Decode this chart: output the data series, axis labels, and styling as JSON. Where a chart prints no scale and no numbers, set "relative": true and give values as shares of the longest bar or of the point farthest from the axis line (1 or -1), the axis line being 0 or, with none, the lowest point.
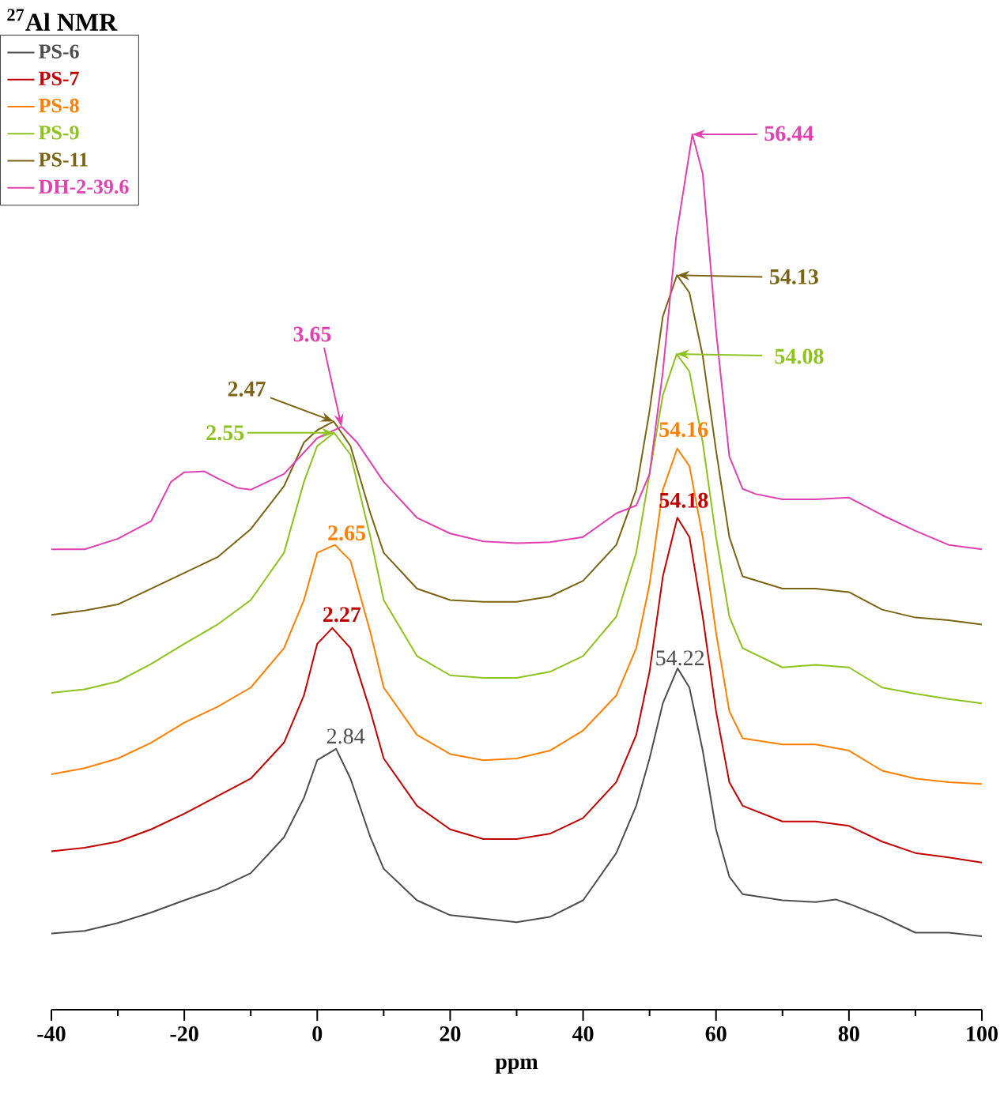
{
  "chart_data": {
    "type": "line",
    "title": "$^{27}$Al NMR",
    "xlabel": "ppm",
    "relative": true,
    "xlim": [
      -40,
      100
    ],
    "xticks": [
      -40,
      -20,
      0,
      20,
      40,
      60,
      80,
      100
    ],
    "tick_labels": "x",
    "grid": false,
    "legend": "top left",
    "line_style": "solid",
    "series": [
      {
        "name": "PS-6",
        "color": "#4d4d4d",
        "x": [
          -40,
          -35,
          -30,
          -25,
          -20,
          -15,
          -10,
          -5,
          -2,
          0,
          2.84,
          5,
          8,
          10,
          15,
          20,
          25,
          30,
          35,
          40,
          45,
          48,
          50,
          52,
          54.22,
          56,
          58,
          60,
          62,
          64,
          70,
          75,
          78,
          80,
          85,
          90,
          95,
          100
        ],
        "values": [
          0.087,
          0.09,
          0.099,
          0.111,
          0.125,
          0.138,
          0.156,
          0.197,
          0.242,
          0.285,
          0.298,
          0.264,
          0.197,
          0.161,
          0.125,
          0.108,
          0.104,
          0.1,
          0.106,
          0.125,
          0.179,
          0.233,
          0.287,
          0.35,
          0.39,
          0.368,
          0.296,
          0.206,
          0.152,
          0.132,
          0.125,
          0.123,
          0.126,
          0.121,
          0.106,
          0.088,
          0.088,
          0.084
        ]
      },
      {
        "name": "PS-7",
        "color": "#c00000",
        "x": [
          -40,
          -35,
          -30,
          -25,
          -20,
          -15,
          -10,
          -5,
          -2,
          0,
          2.27,
          5,
          8,
          10,
          15,
          20,
          25,
          30,
          35,
          40,
          45,
          48,
          50,
          52,
          54.18,
          56,
          58,
          60,
          62,
          64,
          70,
          75,
          80,
          85,
          90,
          95,
          100
        ],
        "values": [
          0.181,
          0.185,
          0.192,
          0.206,
          0.224,
          0.244,
          0.264,
          0.305,
          0.359,
          0.418,
          0.436,
          0.413,
          0.341,
          0.287,
          0.233,
          0.206,
          0.195,
          0.195,
          0.201,
          0.219,
          0.26,
          0.314,
          0.386,
          0.495,
          0.562,
          0.54,
          0.449,
          0.341,
          0.26,
          0.233,
          0.215,
          0.215,
          0.21,
          0.192,
          0.179,
          0.174,
          0.168
        ]
      },
      {
        "name": "PS-8",
        "color": "#ff8000",
        "x": [
          -40,
          -35,
          -30,
          -25,
          -20,
          -15,
          -10,
          -5,
          -2,
          0,
          2.65,
          5,
          8,
          10,
          15,
          20,
          25,
          30,
          35,
          40,
          45,
          48,
          50,
          52,
          54.16,
          56,
          58,
          60,
          62,
          64,
          70,
          75,
          80,
          85,
          90,
          95,
          100
        ],
        "values": [
          0.269,
          0.276,
          0.287,
          0.305,
          0.328,
          0.346,
          0.368,
          0.413,
          0.468,
          0.522,
          0.531,
          0.513,
          0.431,
          0.368,
          0.314,
          0.292,
          0.285,
          0.287,
          0.296,
          0.319,
          0.359,
          0.413,
          0.486,
          0.594,
          0.641,
          0.621,
          0.54,
          0.431,
          0.341,
          0.31,
          0.303,
          0.303,
          0.296,
          0.273,
          0.264,
          0.26,
          0.258
        ]
      },
      {
        "name": "PS-9",
        "color": "#8dc21f",
        "x": [
          -40,
          -35,
          -30,
          -25,
          -20,
          -15,
          -10,
          -5,
          -2,
          0,
          2.55,
          5,
          8,
          10,
          15,
          20,
          25,
          30,
          35,
          40,
          45,
          48,
          50,
          52,
          54.08,
          56,
          58,
          60,
          62,
          64,
          70,
          75,
          80,
          85,
          90,
          95,
          100
        ],
        "values": [
          0.362,
          0.366,
          0.375,
          0.395,
          0.418,
          0.44,
          0.468,
          0.522,
          0.603,
          0.644,
          0.659,
          0.634,
          0.54,
          0.468,
          0.404,
          0.382,
          0.379,
          0.379,
          0.386,
          0.404,
          0.449,
          0.522,
          0.612,
          0.702,
          0.749,
          0.729,
          0.648,
          0.54,
          0.449,
          0.413,
          0.391,
          0.394,
          0.391,
          0.368,
          0.361,
          0.355,
          0.35
        ]
      },
      {
        "name": "PS-11",
        "color": "#7a6414",
        "x": [
          -40,
          -35,
          -30,
          -25,
          -20,
          -15,
          -10,
          -5,
          -2,
          0,
          2.47,
          5,
          8,
          10,
          15,
          20,
          25,
          30,
          35,
          40,
          45,
          48,
          50,
          52,
          54.13,
          56,
          58,
          60,
          62,
          64,
          70,
          75,
          80,
          85,
          90,
          95,
          100
        ],
        "values": [
          0.451,
          0.456,
          0.463,
          0.481,
          0.499,
          0.517,
          0.549,
          0.598,
          0.648,
          0.662,
          0.672,
          0.644,
          0.567,
          0.522,
          0.481,
          0.468,
          0.466,
          0.466,
          0.472,
          0.49,
          0.531,
          0.594,
          0.684,
          0.792,
          0.839,
          0.819,
          0.747,
          0.639,
          0.54,
          0.495,
          0.481,
          0.481,
          0.477,
          0.457,
          0.448,
          0.445,
          0.44
        ]
      },
      {
        "name": "DH-2-39.6",
        "color": "#e040b0",
        "x": [
          -40,
          -35,
          -30,
          -25,
          -22,
          -20,
          -17,
          -15,
          -12,
          -10,
          -5,
          0,
          3.65,
          6,
          10,
          15,
          20,
          25,
          30,
          35,
          40,
          45,
          48,
          50,
          52,
          54,
          56.44,
          58,
          60,
          62,
          64,
          66,
          70,
          75,
          80,
          85,
          90,
          95,
          100
        ],
        "values": [
          0.526,
          0.526,
          0.538,
          0.558,
          0.603,
          0.614,
          0.615,
          0.607,
          0.596,
          0.594,
          0.612,
          0.653,
          0.666,
          0.648,
          0.603,
          0.562,
          0.544,
          0.535,
          0.533,
          0.534,
          0.54,
          0.567,
          0.576,
          0.612,
          0.729,
          0.883,
          1.0,
          0.955,
          0.776,
          0.632,
          0.595,
          0.589,
          0.583,
          0.583,
          0.585,
          0.565,
          0.547,
          0.531,
          0.526
        ]
      }
    ],
    "annotations": [
      {
        "text": "2.84",
        "x": 2.84,
        "y": 0.298
      },
      {
        "text": "54.22",
        "x": 54.22,
        "y": 0.39
      },
      {
        "text": "2.27",
        "x": 2.27,
        "y": 0.436
      },
      {
        "text": "54.18",
        "x": 54.18,
        "y": 0.562
      },
      {
        "text": "2.65",
        "x": 2.65,
        "y": 0.531
      },
      {
        "text": "54.16",
        "x": 54.16,
        "y": 0.641
      },
      "2.55",
      "54.08",
      "2.47",
      "54.13",
      "3.65",
      "56.44"
    ]
  }
}
